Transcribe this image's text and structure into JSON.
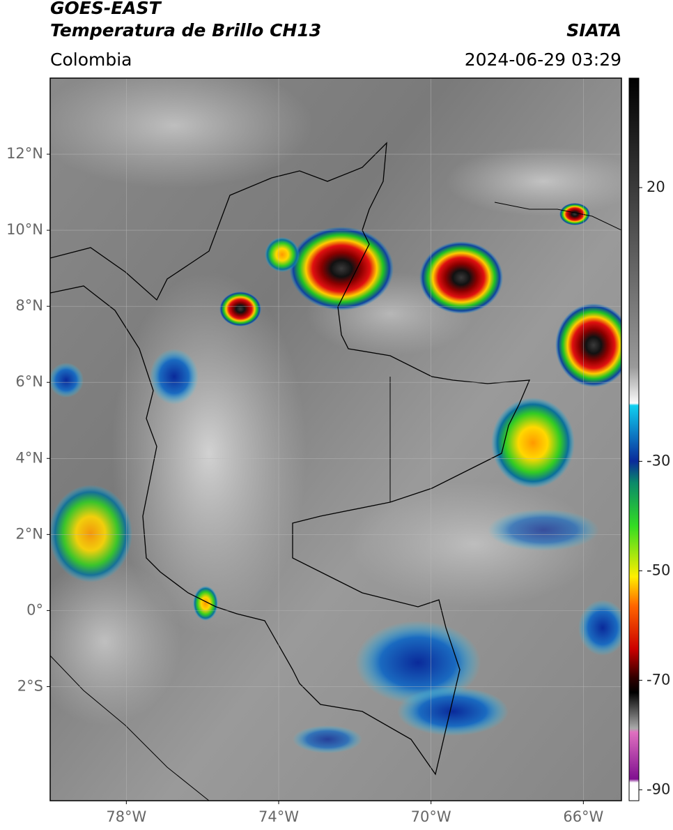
{
  "header": {
    "title": "GOES-EAST",
    "subtitle": "Temperatura de Brillo CH13",
    "region": "Colombia",
    "source": "SIATA",
    "datetime": "2024-06-29 03:29"
  },
  "map": {
    "lonlim": [
      -80,
      -65
    ],
    "latlim": [
      -5,
      14
    ],
    "lat_ticks": [
      {
        "value": 12,
        "label": "12°N"
      },
      {
        "value": 10,
        "label": "10°N"
      },
      {
        "value": 8,
        "label": "8°N"
      },
      {
        "value": 6,
        "label": "6°N"
      },
      {
        "value": 4,
        "label": "4°N"
      },
      {
        "value": 2,
        "label": "2°N"
      },
      {
        "value": 0,
        "label": "0°"
      },
      {
        "value": -2,
        "label": "2°S"
      }
    ],
    "lon_ticks": [
      {
        "value": -78,
        "label": "78°W"
      },
      {
        "value": -74,
        "label": "74°W"
      },
      {
        "value": -70,
        "label": "70°W"
      },
      {
        "value": -66,
        "label": "66°W"
      }
    ],
    "grid": true
  },
  "colorbar": {
    "lim": [
      -92,
      40
    ],
    "ticks": [
      20,
      -30,
      -50,
      -70,
      -90
    ]
  }
}
